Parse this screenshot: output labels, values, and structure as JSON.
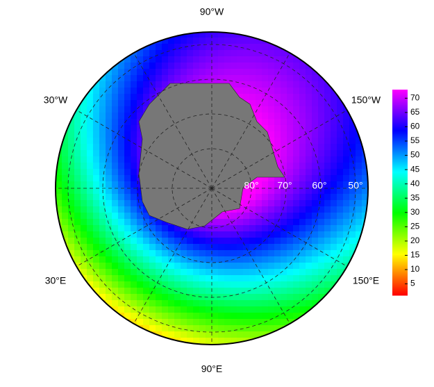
{
  "map": {
    "longitude_labels": [
      "90°W",
      "150°W",
      "30°W",
      "30°E",
      "150°E",
      "90°E"
    ],
    "latitude_labels": [
      "80°",
      "70°",
      "60°",
      "50°"
    ],
    "colorbar": {
      "lim": [
        1,
        73
      ],
      "ticks": [
        5,
        10,
        15,
        20,
        25,
        30,
        35,
        40,
        45,
        50,
        55,
        60,
        65,
        70
      ]
    }
  }
}
